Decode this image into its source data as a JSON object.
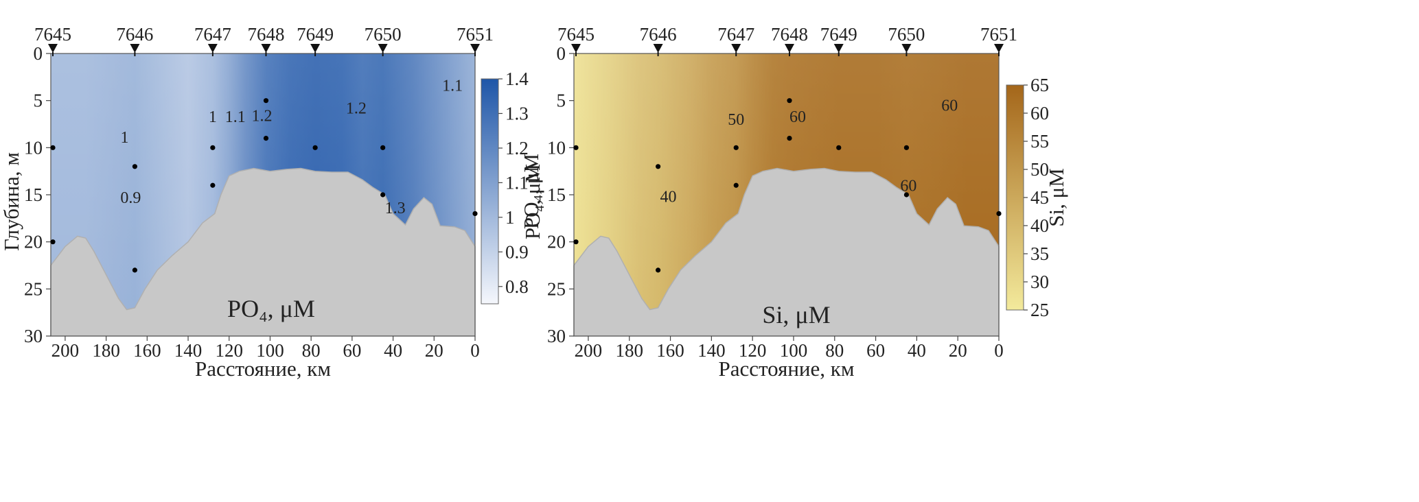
{
  "chart_data": [
    {
      "type": "heatmap",
      "panel_label": "PO₄, μM",
      "parameter": "PO4",
      "unit": "μM",
      "xlabel": "Расстояние, км",
      "ylabel": "Глубина, м",
      "xlim": [
        207,
        0
      ],
      "ylim": [
        0,
        30
      ],
      "x_ticks": [
        200,
        180,
        160,
        140,
        120,
        100,
        80,
        60,
        40,
        20,
        0
      ],
      "y_ticks": [
        0,
        5,
        10,
        15,
        20,
        25,
        30
      ],
      "colorbar": {
        "label": "PO₄, μM",
        "min": 0.75,
        "max": 1.4,
        "ticks": [
          "0.8",
          "0.9",
          "1",
          "1.1",
          "1.2",
          "1.3",
          "1.4"
        ],
        "tick_values": [
          0.8,
          0.9,
          1.0,
          1.1,
          1.2,
          1.3,
          1.4
        ],
        "color_low": "#f5f7fc",
        "color_high": "#1e56a8"
      },
      "stations": [
        {
          "name": "7645",
          "distance": 206
        },
        {
          "name": "7646",
          "distance": 166
        },
        {
          "name": "7647",
          "distance": 128
        },
        {
          "name": "7648",
          "distance": 102
        },
        {
          "name": "7649",
          "distance": 78
        },
        {
          "name": "7650",
          "distance": 45
        },
        {
          "name": "7651",
          "distance": 0
        }
      ],
      "sample_points": [
        {
          "distance": 206,
          "depth": 10
        },
        {
          "distance": 206,
          "depth": 20
        },
        {
          "distance": 166,
          "depth": 12
        },
        {
          "distance": 166,
          "depth": 23
        },
        {
          "distance": 128,
          "depth": 10
        },
        {
          "distance": 128,
          "depth": 14
        },
        {
          "distance": 102,
          "depth": 5
        },
        {
          "distance": 102,
          "depth": 9
        },
        {
          "distance": 78,
          "depth": 10
        },
        {
          "distance": 45,
          "depth": 10
        },
        {
          "distance": 45,
          "depth": 15
        },
        {
          "distance": 0,
          "depth": 17
        }
      ],
      "contour_labels": [
        {
          "text": "1",
          "distance": 171,
          "depth": 8.9
        },
        {
          "text": "0.9",
          "distance": 168,
          "depth": 15.3
        },
        {
          "text": "1",
          "distance": 128,
          "depth": 6.7
        },
        {
          "text": "1.1",
          "distance": 117,
          "depth": 6.7
        },
        {
          "text": "1.2",
          "distance": 104,
          "depth": 6.6
        },
        {
          "text": "1.2",
          "distance": 58,
          "depth": 5.8
        },
        {
          "text": "1.1",
          "distance": 11,
          "depth": 3.4
        },
        {
          "text": "1.3",
          "distance": 39,
          "depth": 16.4
        }
      ],
      "bottom_profile": [
        [
          207,
          22.5
        ],
        [
          200,
          20.5
        ],
        [
          194,
          19.4
        ],
        [
          190,
          19.6
        ],
        [
          186,
          21.0
        ],
        [
          180,
          23.5
        ],
        [
          174,
          26.0
        ],
        [
          170,
          27.2
        ],
        [
          166,
          27.0
        ],
        [
          161,
          25.0
        ],
        [
          155,
          23.0
        ],
        [
          148,
          21.5
        ],
        [
          140,
          20.0
        ],
        [
          133,
          18.0
        ],
        [
          127,
          17.0
        ],
        [
          124,
          15.0
        ],
        [
          120,
          13.0
        ],
        [
          115,
          12.5
        ],
        [
          108,
          12.2
        ],
        [
          100,
          12.5
        ],
        [
          92,
          12.3
        ],
        [
          85,
          12.2
        ],
        [
          78,
          12.5
        ],
        [
          70,
          12.6
        ],
        [
          62,
          12.6
        ],
        [
          55,
          13.4
        ],
        [
          50,
          14.2
        ],
        [
          44,
          15.0
        ],
        [
          40,
          17.0
        ],
        [
          34,
          18.2
        ],
        [
          30,
          16.5
        ],
        [
          25,
          15.3
        ],
        [
          21,
          16.0
        ],
        [
          17,
          18.3
        ],
        [
          10,
          18.4
        ],
        [
          5,
          18.8
        ],
        [
          0,
          20.5
        ]
      ],
      "field_profile": [
        [
          206,
          1.0
        ],
        [
          190,
          1.0
        ],
        [
          175,
          1.02
        ],
        [
          166,
          1.03
        ],
        [
          150,
          0.98
        ],
        [
          140,
          0.95
        ],
        [
          128,
          1.0
        ],
        [
          120,
          1.08
        ],
        [
          112,
          1.18
        ],
        [
          102,
          1.28
        ],
        [
          90,
          1.33
        ],
        [
          78,
          1.35
        ],
        [
          65,
          1.34
        ],
        [
          55,
          1.3
        ],
        [
          45,
          1.32
        ],
        [
          30,
          1.25
        ],
        [
          15,
          1.15
        ],
        [
          0,
          1.05
        ]
      ]
    },
    {
      "type": "heatmap",
      "panel_label": "Si, μM",
      "parameter": "Si",
      "unit": "μM",
      "xlabel": "Расстояние, км",
      "ylabel": "PO₄, μM",
      "xlim": [
        207,
        0
      ],
      "ylim": [
        0,
        30
      ],
      "x_ticks": [
        200,
        180,
        160,
        140,
        120,
        100,
        80,
        60,
        40,
        20,
        0
      ],
      "y_ticks": [
        0,
        5,
        10,
        15,
        20,
        25,
        30
      ],
      "colorbar": {
        "label": "Si, μM",
        "min": 25,
        "max": 65,
        "ticks": [
          "25",
          "30",
          "35",
          "40",
          "45",
          "50",
          "55",
          "60",
          "65"
        ],
        "tick_values": [
          25,
          30,
          35,
          40,
          45,
          50,
          55,
          60,
          65
        ],
        "color_low": "#f3ea9c",
        "color_high": "#a4661a"
      },
      "stations": [
        {
          "name": "7645",
          "distance": 206
        },
        {
          "name": "7646",
          "distance": 166
        },
        {
          "name": "7647",
          "distance": 128
        },
        {
          "name": "7648",
          "distance": 102
        },
        {
          "name": "7649",
          "distance": 78
        },
        {
          "name": "7650",
          "distance": 45
        },
        {
          "name": "7651",
          "distance": 0
        }
      ],
      "sample_points": [
        {
          "distance": 206,
          "depth": 10
        },
        {
          "distance": 206,
          "depth": 20
        },
        {
          "distance": 166,
          "depth": 12
        },
        {
          "distance": 166,
          "depth": 23
        },
        {
          "distance": 128,
          "depth": 10
        },
        {
          "distance": 128,
          "depth": 14
        },
        {
          "distance": 102,
          "depth": 5
        },
        {
          "distance": 102,
          "depth": 9
        },
        {
          "distance": 78,
          "depth": 10
        },
        {
          "distance": 45,
          "depth": 10
        },
        {
          "distance": 45,
          "depth": 15
        },
        {
          "distance": 0,
          "depth": 17
        }
      ],
      "contour_labels": [
        {
          "text": "50",
          "distance": 128,
          "depth": 7.0
        },
        {
          "text": "60",
          "distance": 98,
          "depth": 6.7
        },
        {
          "text": "60",
          "distance": 24,
          "depth": 5.5
        },
        {
          "text": "40",
          "distance": 161,
          "depth": 15.2
        },
        {
          "text": "60",
          "distance": 44,
          "depth": 14.0
        }
      ],
      "bottom_profile": [
        [
          207,
          22.5
        ],
        [
          200,
          20.5
        ],
        [
          194,
          19.4
        ],
        [
          190,
          19.6
        ],
        [
          186,
          21.0
        ],
        [
          180,
          23.5
        ],
        [
          174,
          26.0
        ],
        [
          170,
          27.2
        ],
        [
          166,
          27.0
        ],
        [
          161,
          25.0
        ],
        [
          155,
          23.0
        ],
        [
          148,
          21.5
        ],
        [
          140,
          20.0
        ],
        [
          133,
          18.0
        ],
        [
          127,
          17.0
        ],
        [
          124,
          15.0
        ],
        [
          120,
          13.0
        ],
        [
          115,
          12.5
        ],
        [
          108,
          12.2
        ],
        [
          100,
          12.5
        ],
        [
          92,
          12.3
        ],
        [
          85,
          12.2
        ],
        [
          78,
          12.5
        ],
        [
          70,
          12.6
        ],
        [
          62,
          12.6
        ],
        [
          55,
          13.4
        ],
        [
          50,
          14.2
        ],
        [
          44,
          15.0
        ],
        [
          40,
          17.0
        ],
        [
          34,
          18.2
        ],
        [
          30,
          16.5
        ],
        [
          25,
          15.3
        ],
        [
          21,
          16.0
        ],
        [
          17,
          18.3
        ],
        [
          10,
          18.4
        ],
        [
          5,
          18.8
        ],
        [
          0,
          20.5
        ]
      ],
      "field_profile": [
        [
          206,
          28
        ],
        [
          190,
          33
        ],
        [
          175,
          38
        ],
        [
          166,
          40
        ],
        [
          150,
          45
        ],
        [
          140,
          49
        ],
        [
          128,
          52
        ],
        [
          120,
          56
        ],
        [
          110,
          60
        ],
        [
          102,
          61
        ],
        [
          90,
          62
        ],
        [
          78,
          63
        ],
        [
          60,
          63
        ],
        [
          45,
          62
        ],
        [
          30,
          63
        ],
        [
          15,
          64
        ],
        [
          0,
          64
        ]
      ]
    }
  ]
}
